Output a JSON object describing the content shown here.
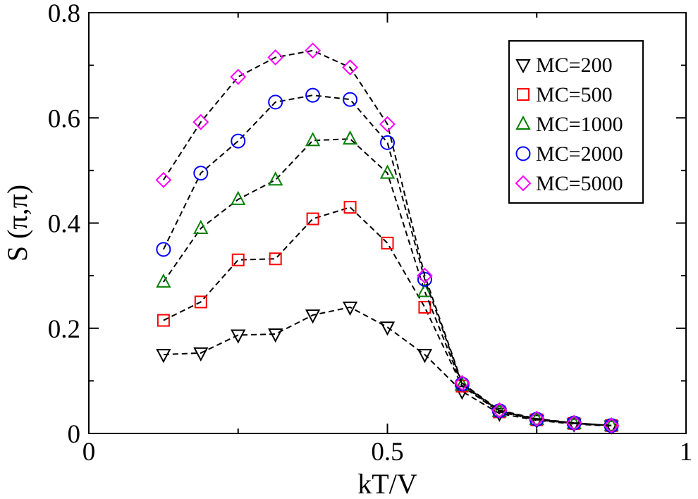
{
  "chart_data": {
    "type": "line",
    "xlabel": "kT/V",
    "ylabel": "S (π,π)",
    "xlim": [
      0,
      1
    ],
    "ylim": [
      0,
      0.8
    ],
    "x_ticks": [
      "0",
      "0.5",
      "1"
    ],
    "y_ticks": [
      "0",
      "0.2",
      "0.4",
      "0.6",
      "0.8"
    ],
    "grid": false,
    "legend_position": "top-right",
    "line_style": "dashed",
    "x": [
      0.125,
      0.1875,
      0.25,
      0.3125,
      0.375,
      0.4375,
      0.5,
      0.5625,
      0.625,
      0.6875,
      0.75,
      0.8125,
      0.875
    ],
    "series": [
      {
        "name": "MC=200",
        "marker": "triangle-down",
        "color": "#000000",
        "values": [
          0.15,
          0.153,
          0.187,
          0.189,
          0.225,
          0.24,
          0.202,
          0.15,
          0.08,
          0.038,
          0.025,
          0.018,
          0.014
        ]
      },
      {
        "name": "MC=500",
        "marker": "square",
        "color": "#ff0000",
        "values": [
          0.215,
          0.25,
          0.33,
          0.332,
          0.408,
          0.43,
          0.362,
          0.24,
          0.09,
          0.041,
          0.026,
          0.019,
          0.015
        ]
      },
      {
        "name": "MC=1000",
        "marker": "triangle-up",
        "color": "#008000",
        "values": [
          0.288,
          0.39,
          0.445,
          0.482,
          0.557,
          0.56,
          0.495,
          0.27,
          0.092,
          0.042,
          0.027,
          0.019,
          0.015
        ]
      },
      {
        "name": "MC=2000",
        "marker": "circle",
        "color": "#0000ff",
        "values": [
          0.35,
          0.495,
          0.556,
          0.63,
          0.643,
          0.635,
          0.553,
          0.293,
          0.094,
          0.043,
          0.027,
          0.02,
          0.015
        ]
      },
      {
        "name": "MC=5000",
        "marker": "diamond",
        "color": "#ff00ff",
        "values": [
          0.482,
          0.592,
          0.678,
          0.715,
          0.728,
          0.696,
          0.588,
          0.3,
          0.096,
          0.044,
          0.028,
          0.02,
          0.015
        ]
      }
    ]
  }
}
